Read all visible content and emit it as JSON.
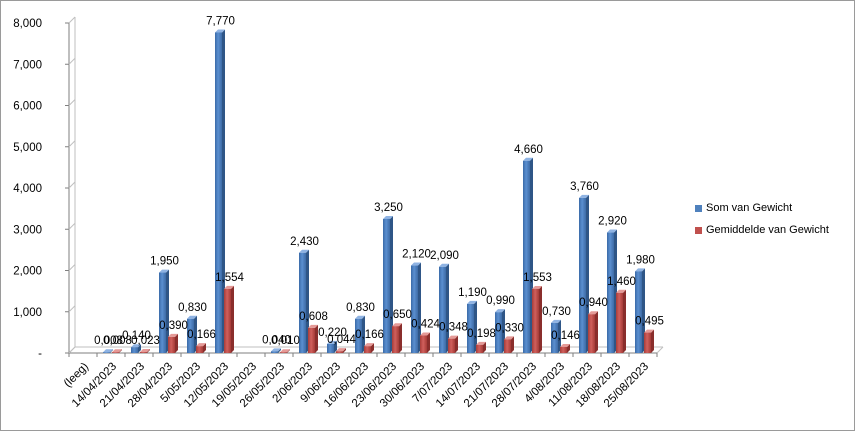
{
  "chart_data": {
    "type": "bar",
    "title": "",
    "xlabel": "",
    "ylabel": "",
    "ylim": [
      0,
      8000
    ],
    "yticks": [
      0,
      1000,
      2000,
      3000,
      4000,
      5000,
      6000,
      7000,
      8000
    ],
    "ytick_labels": [
      "-",
      "1,000",
      "2,000",
      "3,000",
      "4,000",
      "5,000",
      "6,000",
      "7,000",
      "8,000"
    ],
    "grid": false,
    "legend_position": "right",
    "categories": [
      "(leeg)",
      "14/04/2023",
      "21/04/2023",
      "28/04/2023",
      "5/05/2023",
      "12/05/2023",
      "19/05/2023",
      "26/05/2023",
      "2/06/2023",
      "9/06/2023",
      "16/06/2023",
      "23/06/2023",
      "30/06/2023",
      "7/07/2023",
      "14/07/2023",
      "21/07/2023",
      "28/07/2023",
      "4/08/2023",
      "11/08/2023",
      "18/08/2023",
      "25/08/2023"
    ],
    "series": [
      {
        "name": "Som van Gewicht",
        "color": "#4f81bd",
        "values": [
          null,
          8,
          140,
          1950,
          830,
          7770,
          null,
          40,
          2430,
          220,
          830,
          3250,
          2120,
          2090,
          1190,
          990,
          4660,
          730,
          3760,
          2920,
          1980
        ],
        "labels": [
          "",
          "0,008",
          "0,140",
          "1,950",
          "0,830",
          "7,770",
          "",
          "0,040",
          "2,430",
          "0,220",
          "0,830",
          "3,250",
          "2,120",
          "2,090",
          "1,190",
          "0,990",
          "4,660",
          "0,730",
          "3,760",
          "2,920",
          "1,980"
        ]
      },
      {
        "name": "Gemiddelde van Gewicht",
        "color": "#c0504d",
        "values": [
          null,
          8,
          23,
          390,
          166,
          1554,
          null,
          10,
          608,
          44,
          166,
          650,
          424,
          348,
          198,
          330,
          1553,
          146,
          940,
          1460,
          495
        ],
        "labels": [
          "",
          "0,008",
          "0,023",
          "0,390",
          "0,166",
          "1,554",
          "",
          "0,010",
          "0,608",
          "0,044",
          "0,166",
          "0,650",
          "0,424",
          "0,348",
          "0,198",
          "0,330",
          "1,553",
          "0,146",
          "0,940",
          "1,460",
          "0,495"
        ]
      }
    ]
  }
}
